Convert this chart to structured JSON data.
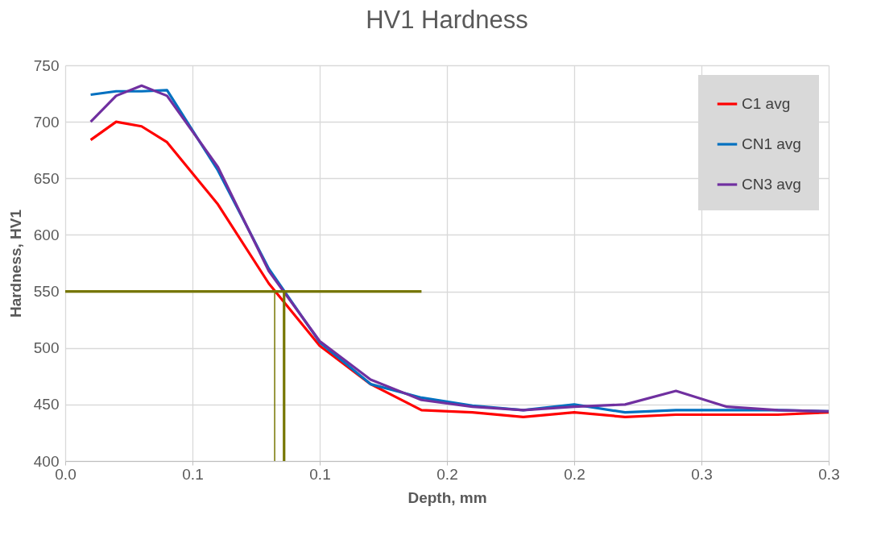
{
  "chart_data": {
    "type": "line",
    "title": "HV1 Hardness",
    "xlabel": "Depth, mm",
    "ylabel": "Hardness, HV1",
    "xlim": [
      0,
      0.3
    ],
    "xticks": [
      {
        "value": 0,
        "label": "0.0"
      },
      {
        "value": 0.05,
        "label": "0.1"
      },
      {
        "value": 0.1,
        "label": "0.1"
      },
      {
        "value": 0.15,
        "label": "0.2"
      },
      {
        "value": 0.2,
        "label": "0.2"
      },
      {
        "value": 0.25,
        "label": "0.3"
      },
      {
        "value": 0.3,
        "label": "0.3"
      }
    ],
    "ylim": [
      400,
      750
    ],
    "yticks": [
      400,
      450,
      500,
      550,
      600,
      650,
      700,
      750
    ],
    "x": [
      0.01,
      0.02,
      0.03,
      0.04,
      0.06,
      0.08,
      0.1,
      0.12,
      0.14,
      0.16,
      0.18,
      0.2,
      0.22,
      0.24,
      0.26,
      0.28,
      0.3
    ],
    "series": [
      {
        "name": "C1 avg",
        "color": "#ff0000",
        "values": [
          684,
          700,
          696,
          682,
          627,
          557,
          502,
          468,
          445,
          443,
          439,
          443,
          439,
          441,
          441,
          441,
          443
        ]
      },
      {
        "name": "CN1 avg",
        "color": "#0070c0",
        "values": [
          724,
          727,
          727,
          728,
          657,
          570,
          505,
          468,
          456,
          449,
          445,
          450,
          443,
          445,
          445,
          445,
          444
        ]
      },
      {
        "name": "CN3 avg",
        "color": "#7030a0",
        "values": [
          700,
          723,
          732,
          723,
          660,
          568,
          506,
          472,
          454,
          448,
          445,
          448,
          450,
          462,
          448,
          445,
          444
        ]
      },
      {
        "color": "#767600",
        "x": [
          0,
          0.14
        ],
        "values": [
          550,
          550
        ]
      },
      {
        "color": "#767600",
        "x": [
          0.0823,
          0.0823
        ],
        "values": [
          400,
          550
        ]
      },
      {
        "color": "#767600",
        "x": [
          0.086,
          0.086
        ],
        "values": [
          400,
          550
        ]
      }
    ],
    "grid": true,
    "legend": "top right",
    "marker": "none",
    "line_style": "solid"
  }
}
